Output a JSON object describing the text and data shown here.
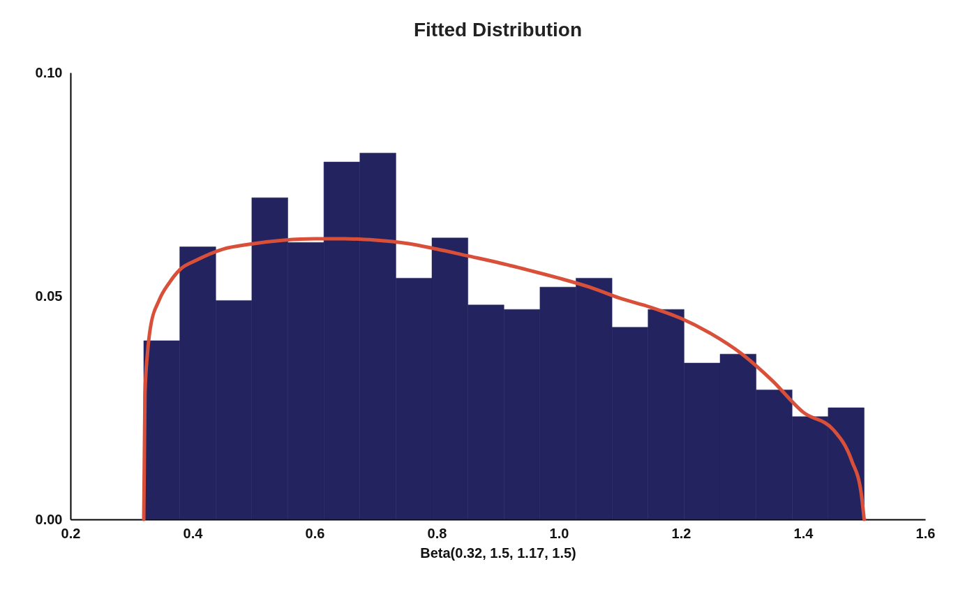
{
  "chart_data": {
    "type": "histogram",
    "title": "Fitted Distribution",
    "xlabel": "Beta(0.32, 1.5, 1.17, 1.5)",
    "bins": [
      0.32,
      0.379,
      0.438,
      0.497,
      0.556,
      0.615,
      0.674,
      0.733,
      0.792,
      0.851,
      0.91,
      0.969,
      1.028,
      1.087,
      1.146,
      1.205,
      1.264,
      1.323,
      1.382,
      1.441,
      1.5
    ],
    "series": [
      {
        "color": "#23235f",
        "values": [
          0.04,
          0.061,
          0.049,
          0.072,
          0.062,
          0.08,
          0.082,
          0.054,
          0.063,
          0.048,
          0.047,
          0.052,
          0.054,
          0.043,
          0.047,
          0.035,
          0.037,
          0.029,
          0.023,
          0.025
        ]
      },
      {
        "type": "line",
        "color": "#d9503a",
        "x": [
          0.32,
          0.322,
          0.326,
          0.331,
          0.345,
          0.362,
          0.38,
          0.406,
          0.45,
          0.494,
          0.55,
          0.6,
          0.65,
          0.7,
          0.75,
          0.8,
          0.85,
          0.9,
          0.95,
          1.0,
          1.05,
          1.1,
          1.15,
          1.2,
          1.25,
          1.3,
          1.35,
          1.4,
          1.45,
          1.48,
          1.495,
          1.5
        ],
        "values": [
          0,
          0.028,
          0.037,
          0.043,
          0.049,
          0.053,
          0.056,
          0.058,
          0.0605,
          0.0616,
          0.0625,
          0.0628,
          0.0628,
          0.0625,
          0.0618,
          0.0605,
          0.059,
          0.0575,
          0.0558,
          0.054,
          0.052,
          0.0495,
          0.0475,
          0.045,
          0.0415,
          0.037,
          0.031,
          0.024,
          0.02,
          0.013,
          0.006,
          0
        ]
      }
    ],
    "xlim": [
      0.2,
      1.6
    ],
    "xticks": [
      {
        "value": 0.2,
        "label": "0.2"
      },
      {
        "value": 0.4,
        "label": "0.4"
      },
      {
        "value": 0.6,
        "label": "0.6"
      },
      {
        "value": 0.8,
        "label": "0.8"
      },
      {
        "value": 1.0,
        "label": "1.0"
      },
      {
        "value": 1.2,
        "label": "1.2"
      },
      {
        "value": 1.4,
        "label": "1.4"
      },
      {
        "value": 1.6,
        "label": "1.6"
      }
    ],
    "ylim": [
      0,
      0.1
    ],
    "yticks": [
      {
        "value": 0,
        "label": "0.00"
      },
      {
        "value": 0.05,
        "label": "0.05"
      },
      {
        "value": 0.1,
        "label": "0.10"
      }
    ],
    "grid": false
  }
}
